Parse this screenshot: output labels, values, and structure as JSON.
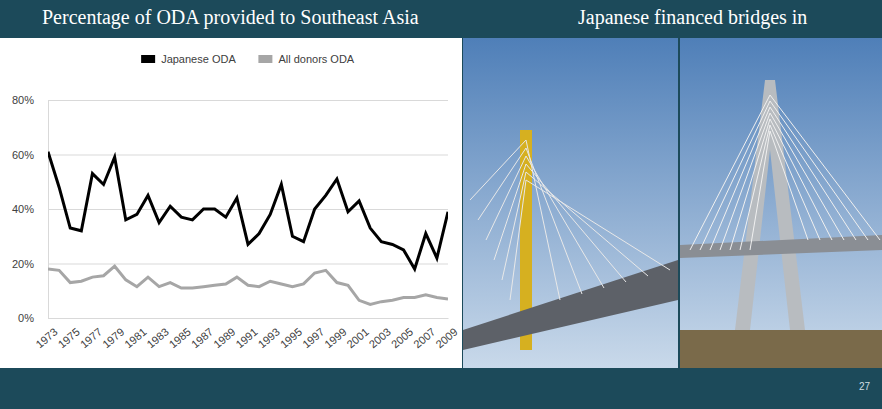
{
  "chart_data": {
    "type": "line",
    "title": "Percentage of ODA provided to Southeast Asia",
    "x": [
      1973,
      1974,
      1975,
      1976,
      1977,
      1978,
      1979,
      1980,
      1981,
      1982,
      1983,
      1984,
      1985,
      1986,
      1987,
      1988,
      1989,
      1990,
      1991,
      1992,
      1993,
      1994,
      1995,
      1996,
      1997,
      1998,
      1999,
      2000,
      2001,
      2002,
      2003,
      2004,
      2005,
      2006,
      2007,
      2008,
      2009
    ],
    "series": [
      {
        "name": "Japanese ODA",
        "color": "#000000",
        "line_style": "solid",
        "values": [
          61,
          48,
          33,
          32,
          53,
          49,
          59,
          36,
          38,
          45,
          35,
          41,
          37,
          36,
          40,
          40,
          37,
          44,
          27,
          31,
          38,
          49,
          30,
          28,
          40,
          45,
          51,
          39,
          43,
          33,
          28,
          27,
          25,
          18,
          31,
          22,
          39
        ]
      },
      {
        "name": "All donors ODA",
        "color": "#a6a6a6",
        "line_style": "solid",
        "values": [
          18,
          17.5,
          13,
          13.5,
          15,
          15.5,
          19,
          14,
          11.5,
          15,
          11.5,
          13,
          11,
          11,
          11.5,
          12,
          12.5,
          15,
          12,
          11.5,
          13.5,
          12.5,
          11.5,
          12.5,
          16.5,
          17.5,
          13,
          12,
          6.5,
          5,
          6,
          6.5,
          7.5,
          7.5,
          8.5,
          7.5,
          7
        ]
      }
    ],
    "xlim": [
      1973,
      2009
    ],
    "xticks": [
      1973,
      1975,
      1977,
      1979,
      1981,
      1983,
      1985,
      1987,
      1989,
      1991,
      1993,
      1995,
      1997,
      1999,
      2001,
      2003,
      2005,
      2007,
      2009
    ],
    "ylim": [
      0,
      80
    ],
    "yticks": [
      {
        "value": 0,
        "label": "0%"
      },
      {
        "value": 20,
        "label": "20%"
      },
      {
        "value": 40,
        "label": "40%"
      },
      {
        "value": 60,
        "label": "60%"
      },
      {
        "value": 80,
        "label": "80%"
      }
    ],
    "grid": true,
    "legend": "top"
  },
  "slide": {
    "panel_title": "Japanese financed bridges in",
    "page_number": "27"
  }
}
